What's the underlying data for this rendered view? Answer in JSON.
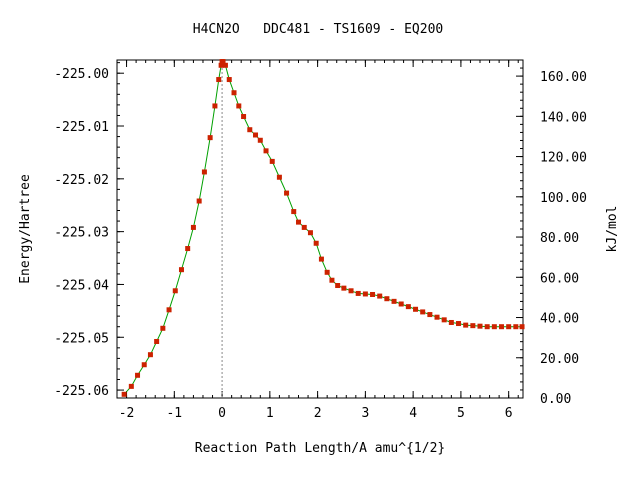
{
  "chart_data": {
    "type": "line",
    "title": "H4CN2O   DDC481 - TS1609 - EQ200",
    "xlabel": "Reaction Path Length/A amu^{1/2}",
    "ylabel": "Energy/Hartree",
    "y2label": "kJ/mol",
    "xlim": [
      -2.2,
      6.3
    ],
    "ylim": [
      -225.0615,
      -224.9975
    ],
    "y2lim": [
      0.0,
      168.0
    ],
    "x_ticks": [
      -2,
      -1,
      0,
      1,
      2,
      3,
      4,
      5,
      6
    ],
    "x_tick_labels": [
      "-2",
      "-1",
      "0",
      "1",
      "2",
      "3",
      "4",
      "5",
      "6"
    ],
    "y_ticks": [
      -225.06,
      -225.05,
      -225.04,
      -225.03,
      -225.02,
      -225.01,
      -225.0
    ],
    "y_tick_labels": [
      "-225.06",
      "-225.05",
      "-225.04",
      "-225.03",
      "-225.02",
      "-225.01",
      "-225.00"
    ],
    "y2_ticks": [
      0,
      20,
      40,
      60,
      80,
      100,
      120,
      140,
      160
    ],
    "y2_tick_labels": [
      "0.00",
      "20.00",
      "40.00",
      "60.00",
      "80.00",
      "100.00",
      "120.00",
      "140.00",
      "160.00"
    ],
    "ts_marker_x": 0.0,
    "line_color": "#00a000",
    "marker_color": "#cc2200",
    "series": [
      {
        "x": [
          -2.05,
          -1.9,
          -1.77,
          -1.63,
          -1.5,
          -1.37,
          -1.24,
          -1.11,
          -0.98,
          -0.85,
          -0.72,
          -0.6,
          -0.48,
          -0.37,
          -0.25,
          -0.15,
          -0.07,
          -0.02,
          0.0,
          0.02,
          0.07,
          0.15,
          0.25,
          0.35,
          0.45,
          0.58,
          0.7,
          0.8,
          0.92,
          1.05,
          1.2,
          1.35,
          1.5,
          1.6,
          1.72,
          1.85,
          1.97,
          2.08,
          2.2,
          2.3,
          2.42,
          2.55,
          2.7,
          2.85,
          3.0,
          3.15,
          3.3,
          3.45,
          3.6,
          3.75,
          3.9,
          4.05,
          4.2,
          4.35,
          4.5,
          4.65,
          4.8,
          4.95,
          5.1,
          5.25,
          5.4,
          5.55,
          5.7,
          5.85,
          6.0,
          6.15,
          6.28
        ],
        "y": [
          -225.0608,
          -225.0593,
          -225.0572,
          -225.0552,
          -225.0533,
          -225.0508,
          -225.0483,
          -225.0448,
          -225.0412,
          -225.0372,
          -225.0332,
          -225.0292,
          -225.0242,
          -225.0187,
          -225.0122,
          -225.0062,
          -225.0012,
          -224.9985,
          -224.9978,
          -224.9978,
          -224.9985,
          -225.0012,
          -225.0037,
          -225.0062,
          -225.0082,
          -225.0107,
          -225.0117,
          -225.0127,
          -225.0147,
          -225.0167,
          -225.0197,
          -225.0227,
          -225.0262,
          -225.0282,
          -225.0292,
          -225.0302,
          -225.0322,
          -225.0352,
          -225.0377,
          -225.0392,
          -225.0402,
          -225.0407,
          -225.0412,
          -225.0417,
          -225.0418,
          -225.0419,
          -225.0422,
          -225.0427,
          -225.0432,
          -225.0437,
          -225.0442,
          -225.0447,
          -225.0452,
          -225.0457,
          -225.0462,
          -225.0467,
          -225.0472,
          -225.0474,
          -225.0477,
          -225.0478,
          -225.0479,
          -225.048,
          -225.048,
          -225.048,
          -225.048,
          -225.048,
          -225.048
        ]
      }
    ]
  }
}
